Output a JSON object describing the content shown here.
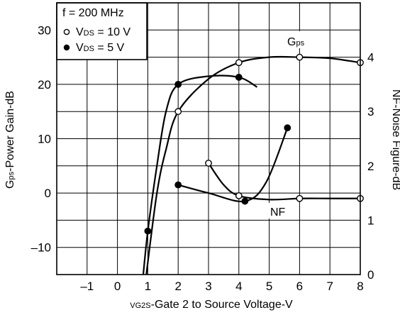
{
  "chart_data": {
    "type": "line",
    "x_ticks": [
      "–1",
      "0",
      "1",
      "2",
      "3",
      "4",
      "5",
      "6",
      "7",
      "8"
    ],
    "y_left_ticks": [
      "–10",
      "0",
      "10",
      "20",
      "30"
    ],
    "y_right_ticks": [
      "0",
      "1",
      "2",
      "3",
      "4"
    ],
    "xlim": [
      -2,
      8
    ],
    "ylim_left": [
      -15,
      35
    ],
    "ylim_right": [
      0,
      5
    ],
    "xlabel": {
      "sub": "G2S",
      "main": "V",
      "rest": "-Gate 2 to Source Voltage-V"
    },
    "ylabel_left": {
      "main": "G",
      "sub": "ps",
      "rest": "-Power Gain-dB"
    },
    "ylabel_right": "NF-Noise Figure-dB",
    "legend": {
      "line1": "f = 200 MHz",
      "entries": [
        {
          "marker": "open-circle",
          "label_main": "V",
          "label_sub": "DS",
          "label_rest": " = 10 V"
        },
        {
          "marker": "filled-circle",
          "label_main": "V",
          "label_sub": "DS",
          "label_rest": " = 5 V"
        }
      ]
    },
    "annotations": {
      "gps": {
        "main": "G",
        "sub": "ps"
      },
      "nf": "NF"
    },
    "grid": true,
    "series": [
      {
        "marker": "open-circle",
        "axis": "left",
        "points": [
          [
            2,
            15
          ],
          [
            4,
            24
          ],
          [
            6,
            25
          ],
          [
            8,
            24
          ]
        ],
        "curve": [
          [
            0.95,
            -15
          ],
          [
            1.3,
            0
          ],
          [
            1.6,
            8
          ],
          [
            2,
            15
          ],
          [
            3,
            21
          ],
          [
            4,
            24
          ],
          [
            5,
            25
          ],
          [
            6,
            25
          ],
          [
            7,
            24.8
          ],
          [
            8,
            24
          ]
        ]
      },
      {
        "marker": "filled-circle",
        "axis": "left",
        "points": [
          [
            1,
            -7
          ],
          [
            2,
            20
          ],
          [
            4,
            21.3
          ]
        ],
        "curve": [
          [
            0.85,
            -15
          ],
          [
            1,
            -7
          ],
          [
            1.3,
            5
          ],
          [
            1.6,
            15
          ],
          [
            2,
            20
          ],
          [
            3,
            21.5
          ],
          [
            4,
            21.3
          ],
          [
            4.6,
            19.5
          ]
        ]
      },
      {
        "marker": "open-circle",
        "axis": "right",
        "points": [
          [
            3,
            2.05
          ],
          [
            4,
            1.45
          ],
          [
            6,
            1.4
          ],
          [
            8,
            1.4
          ]
        ],
        "curve": [
          [
            3,
            2.05
          ],
          [
            3.5,
            1.65
          ],
          [
            4,
            1.45
          ],
          [
            5,
            1.38
          ],
          [
            6,
            1.4
          ],
          [
            7,
            1.4
          ],
          [
            8,
            1.4
          ]
        ]
      },
      {
        "marker": "filled-circle",
        "axis": "right",
        "points": [
          [
            2,
            1.65
          ],
          [
            4.2,
            1.35
          ],
          [
            5.6,
            2.7
          ]
        ],
        "curve": [
          [
            2,
            1.65
          ],
          [
            3,
            1.5
          ],
          [
            4.2,
            1.35
          ],
          [
            4.9,
            1.7
          ],
          [
            5.6,
            2.7
          ]
        ]
      }
    ]
  }
}
